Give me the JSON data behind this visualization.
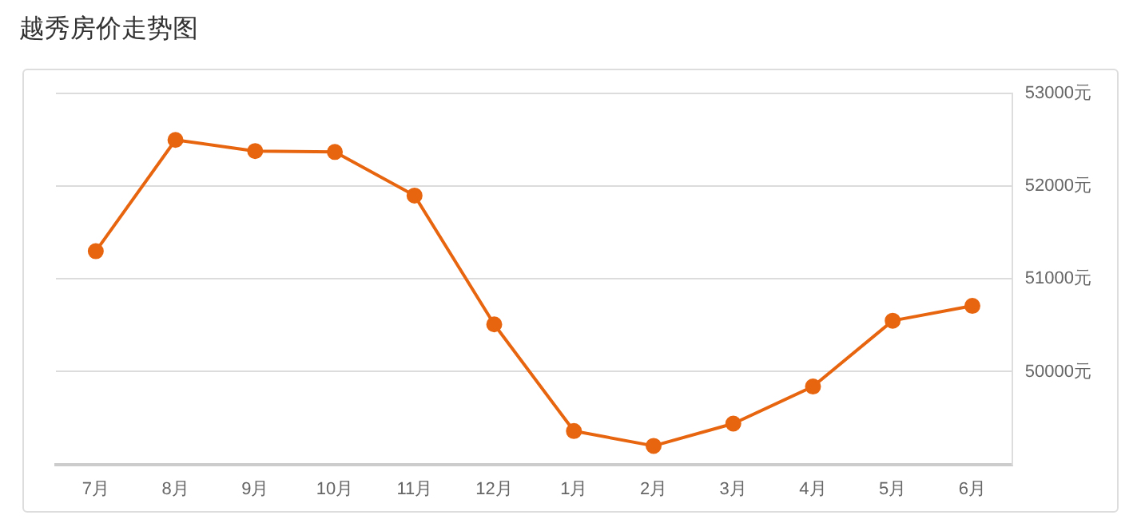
{
  "chart_data": {
    "type": "line",
    "title": "越秀房价走势图",
    "categories": [
      "7月",
      "8月",
      "9月",
      "10月",
      "11月",
      "12月",
      "1月",
      "2月",
      "3月",
      "4月",
      "5月",
      "6月"
    ],
    "series": [
      {
        "color": "#e8650f",
        "values": [
          51300,
          52500,
          52380,
          52370,
          51900,
          50510,
          49360,
          49200,
          49440,
          49840,
          50550,
          50710
        ]
      }
    ],
    "ylim": [
      49000,
      53000
    ],
    "yticks": [
      {
        "value": 50000,
        "label": "50000元"
      },
      {
        "value": 51000,
        "label": "51000元"
      },
      {
        "value": 52000,
        "label": "52000元"
      },
      {
        "value": 53000,
        "label": "53000元"
      }
    ],
    "grid": "y",
    "marker": "circle",
    "line_style": "solid",
    "legend": false
  }
}
